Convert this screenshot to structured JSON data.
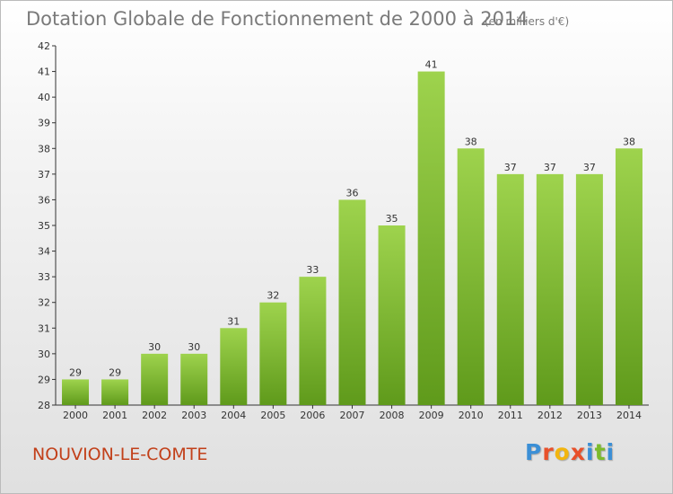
{
  "chart_data": {
    "type": "bar",
    "title": "Dotation Globale de Fonctionnement de 2000 à 2014",
    "unit_label": "(en milliers d'€)",
    "categories": [
      "2000",
      "2001",
      "2002",
      "2003",
      "2004",
      "2005",
      "2006",
      "2007",
      "2008",
      "2009",
      "2010",
      "2011",
      "2012",
      "2013",
      "2014"
    ],
    "values": [
      29,
      29,
      30,
      30,
      31,
      32,
      33,
      36,
      35,
      41,
      38,
      37,
      37,
      37,
      38
    ],
    "ylim": [
      28,
      42
    ],
    "yticks": [
      28,
      29,
      30,
      31,
      32,
      33,
      34,
      35,
      36,
      37,
      38,
      39,
      40,
      41,
      42
    ],
    "xlabel": "",
    "ylabel": "",
    "grid": false,
    "colors": {
      "bar": "#7cbb2c",
      "bar_light": "#9ed34d",
      "bar_dark": "#5f9a1b"
    }
  },
  "footer": {
    "town": "NOUVION-LE-COMTE",
    "brand_letters": [
      {
        "ch": "P",
        "color": "#3b8fd6"
      },
      {
        "ch": "r",
        "color": "#e8502a"
      },
      {
        "ch": "o",
        "color": "#f2b50f"
      },
      {
        "ch": "x",
        "color": "#e8502a"
      },
      {
        "ch": "i",
        "color": "#3b8fd6"
      },
      {
        "ch": "t",
        "color": "#7cbb2c"
      },
      {
        "ch": "i",
        "color": "#3b8fd6"
      }
    ]
  }
}
